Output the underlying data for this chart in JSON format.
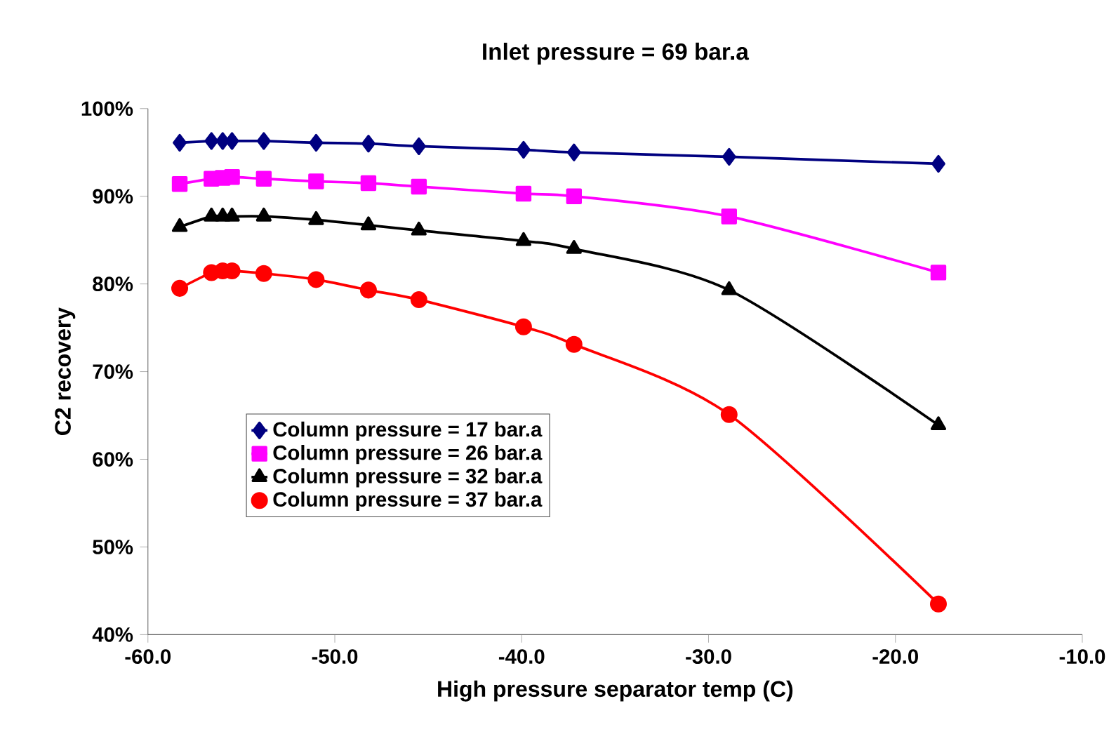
{
  "chart_data": {
    "type": "line",
    "title": "Inlet pressure = 69 bar.a",
    "xlabel": "High pressure separator temp (C)",
    "ylabel": "C2 recovery",
    "x": [
      -58.3,
      -56.6,
      -56.0,
      -55.5,
      -53.8,
      -51.0,
      -48.2,
      -45.5,
      -39.9,
      -37.2,
      -28.9,
      -17.7
    ],
    "series": [
      {
        "name": "Column pressure = 17 bar.a",
        "color": "#000080",
        "marker": "diamond",
        "values": [
          96.1,
          96.3,
          96.3,
          96.3,
          96.3,
          96.1,
          96.0,
          95.7,
          95.3,
          95.0,
          94.5,
          93.7
        ]
      },
      {
        "name": "Column pressure = 26 bar.a",
        "color": "#ff00ff",
        "marker": "square",
        "values": [
          91.4,
          92.0,
          92.1,
          92.2,
          92.0,
          91.7,
          91.5,
          91.1,
          90.3,
          90.0,
          87.7,
          81.3
        ]
      },
      {
        "name": "Column pressure = 32 bar.a",
        "color": "#000000",
        "marker": "triangle",
        "values": [
          86.5,
          87.7,
          87.7,
          87.7,
          87.7,
          87.3,
          86.7,
          86.1,
          84.9,
          84.0,
          79.3,
          63.9
        ]
      },
      {
        "name": "Column pressure = 37 bar.a",
        "color": "#ff0000",
        "marker": "circle",
        "values": [
          79.5,
          81.3,
          81.5,
          81.5,
          81.2,
          80.5,
          79.3,
          78.2,
          75.1,
          73.1,
          65.1,
          43.5
        ]
      }
    ],
    "xlim": [
      -60,
      -10
    ],
    "ylim": [
      40,
      100
    ],
    "xticks": [
      {
        "value": -60,
        "label": "-60.0"
      },
      {
        "value": -50,
        "label": "-50.0"
      },
      {
        "value": -40,
        "label": "-40.0"
      },
      {
        "value": -30,
        "label": "-30.0"
      },
      {
        "value": -20,
        "label": "-20.0"
      },
      {
        "value": -10,
        "label": "-10.0"
      }
    ],
    "yticks": [
      {
        "value": 40,
        "label": "40%"
      },
      {
        "value": 50,
        "label": "50%"
      },
      {
        "value": 60,
        "label": "60%"
      },
      {
        "value": 70,
        "label": "70%"
      },
      {
        "value": 80,
        "label": "80%"
      },
      {
        "value": 90,
        "label": "90%"
      },
      {
        "value": 100,
        "label": "100%"
      }
    ],
    "legend": "bottom left",
    "grid": false
  }
}
